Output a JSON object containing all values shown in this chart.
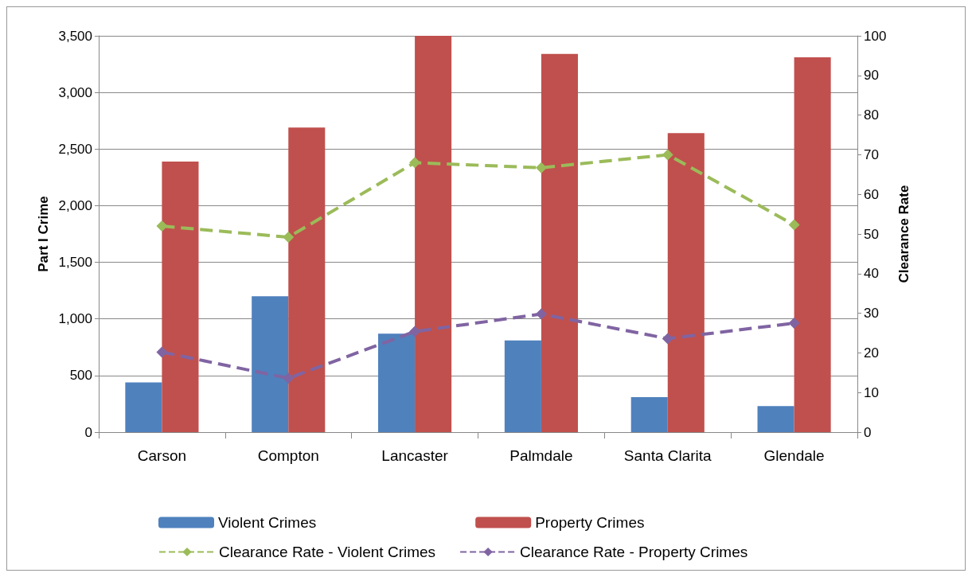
{
  "chart_data": {
    "type": "bar",
    "ylabel": "Part I Crime",
    "y2label": "Clearance Rate",
    "categories": [
      "Carson",
      "Compton",
      "Lancaster",
      "Palmdale",
      "Santa Clarita",
      "Glendale"
    ],
    "series": [
      {
        "name": "Violent Crimes",
        "color": "#4f81bd",
        "values": [
          440,
          1200,
          870,
          810,
          310,
          230
        ]
      },
      {
        "name": "Property Crimes",
        "color": "#c0504d",
        "values": [
          2390,
          2690,
          3500,
          3340,
          2640,
          3310
        ]
      },
      {
        "name": "Clearance Rate - Violent Crimes",
        "type": "line",
        "axis": "y2",
        "color": "#9bbb59",
        "marker": "diamond",
        "line_style": "dashed",
        "values": [
          52,
          49.2,
          68,
          66.7,
          70,
          52.3
        ]
      },
      {
        "name": "Clearance Rate - Property Crimes",
        "type": "line",
        "axis": "y2",
        "color": "#8064a2",
        "marker": "diamond",
        "line_style": "dashed",
        "values": [
          20.2,
          13.6,
          25.4,
          29.8,
          23.6,
          27.5
        ]
      }
    ],
    "ylim": [
      0,
      3500
    ],
    "yticks": [
      0,
      {
        "value": 500,
        "label": "500"
      },
      {
        "value": 1000,
        "label": "1,000"
      },
      {
        "value": 1500,
        "label": "1,500"
      },
      {
        "value": 2000,
        "label": "2,000"
      },
      {
        "value": 2500,
        "label": "2,500"
      },
      {
        "value": 3000,
        "label": "3,000"
      },
      {
        "value": 3500,
        "label": "3,500"
      }
    ],
    "y2lim": [
      0,
      100
    ],
    "y2ticks": [
      0,
      10,
      20,
      30,
      40,
      50,
      60,
      70,
      80,
      90,
      100
    ],
    "grid": "y",
    "legend": "bottom"
  }
}
